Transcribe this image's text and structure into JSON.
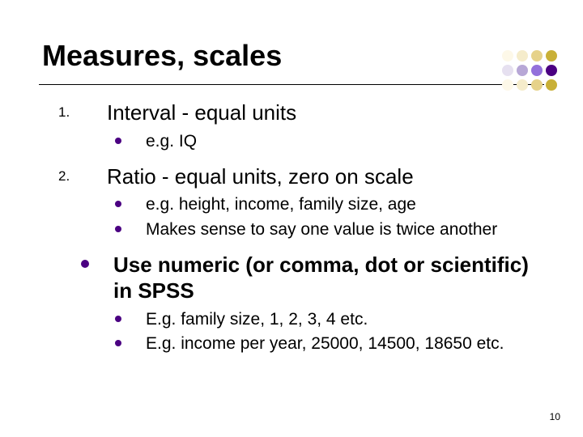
{
  "title": "Measures, scales",
  "dots_palette": [
    "#4b0082",
    "#9370db",
    "#b7a7d6",
    "#e6e0f0",
    "#c9b037",
    "#e6d28a",
    "#f5eccb",
    "#fdf8e8"
  ],
  "dot_grid": [
    [
      "#fdf8e8",
      "#f5eccb",
      "#e6d28a",
      "#c9b037"
    ],
    [
      "#e6e0f0",
      "#b7a7d6",
      "#9370db",
      "#4b0082"
    ],
    [
      "#fdf8e8",
      "#f5eccb",
      "#e6d28a",
      "#c9b037"
    ]
  ],
  "numbered": [
    {
      "n": "1.",
      "text": "Interval - equal units",
      "subs_color": "#4b0082",
      "subs": [
        {
          "text": "e.g. IQ"
        }
      ]
    },
    {
      "n": "2.",
      "text": "Ratio - equal units, zero on scale",
      "subs_color": "#4b0082",
      "subs": [
        {
          "text": "e.g. height, income, family size, age"
        },
        {
          "text": "Makes sense to say one value is twice another"
        }
      ]
    }
  ],
  "top_bullet_color": "#4b0082",
  "spss": {
    "text": "Use numeric (or comma, dot or scientific) in SPSS",
    "subs_color": "#4b0082",
    "subs": [
      {
        "text": "E.g. family size, 1, 2, 3, 4 etc."
      },
      {
        "text": "E.g. income per year, 25000, 14500, 18650 etc."
      }
    ]
  },
  "page_number": "10"
}
